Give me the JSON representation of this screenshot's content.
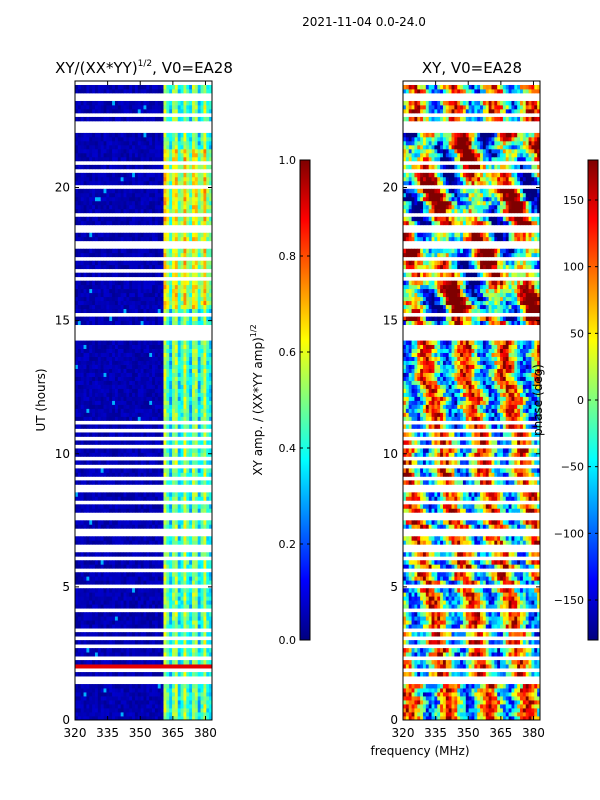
{
  "figure": {
    "suptitle": "2021-11-04 0.0-24.0",
    "shared_xlabel": "frequency (MHz)"
  },
  "colors": {
    "jet_stops": [
      "#00007f",
      "#0000ff",
      "#007fff",
      "#00ffff",
      "#7fff7f",
      "#ffff00",
      "#ff7f00",
      "#ff0000",
      "#7f0000"
    ],
    "background": "#ffffff"
  },
  "chart_data": [
    {
      "type": "heatmap",
      "id": "ratio",
      "title_main": "XY/(XX*YY)",
      "title_sup": "1/2",
      "title_tail": ", V0=EA28",
      "xlabel": "",
      "ylabel": "UT (hours)",
      "xlim": [
        320,
        383
      ],
      "ylim": [
        0,
        24
      ],
      "xticks": [
        320,
        335,
        350,
        365,
        380
      ],
      "xtick_labels": [
        "320",
        "335",
        "350",
        "365",
        "380"
      ],
      "yticks": [
        0,
        5,
        10,
        15,
        20
      ],
      "ytick_labels": [
        "0",
        "5",
        "10",
        "15",
        "20"
      ],
      "bright_band_mhz": [
        360.5,
        383
      ],
      "rfi_row_hours": [
        2.05
      ],
      "colorbar": {
        "label_main": "XY amp. / (XX*YY amp)",
        "label_sup": "1/2",
        "vmin": 0.0,
        "vmax": 1.0,
        "ticks": [
          0.0,
          0.2,
          0.4,
          0.6,
          0.8,
          1.0
        ],
        "tick_labels": [
          "0.0",
          "0.2",
          "0.4",
          "0.6",
          "0.8",
          "1.0"
        ]
      }
    },
    {
      "type": "heatmap",
      "id": "phase",
      "title": "XY, V0=EA28",
      "xlabel": "frequency (MHz)",
      "ylabel": "",
      "xlim": [
        320,
        383
      ],
      "ylim": [
        0,
        24
      ],
      "xticks": [
        320,
        335,
        350,
        365,
        380
      ],
      "xtick_labels": [
        "320",
        "335",
        "350",
        "365",
        "380"
      ],
      "yticks": [
        0,
        5,
        10,
        15,
        20
      ],
      "ytick_labels": [
        "0",
        "5",
        "10",
        "15",
        "20"
      ],
      "colorbar": {
        "label": "phase (deg)",
        "vmin": -180,
        "vmax": 180,
        "ticks": [
          -150,
          -100,
          -50,
          0,
          50,
          100,
          150
        ],
        "tick_labels": [
          "−150",
          "−100",
          "−50",
          "0",
          "50",
          "100",
          "150"
        ]
      }
    }
  ],
  "flagged_gaps_hours": [
    [
      1.35,
      1.6
    ],
    [
      5.55,
      5.75
    ],
    [
      14.3,
      14.8
    ],
    [
      22.0,
      22.55
    ],
    [
      22.7,
      22.85
    ],
    [
      23.2,
      23.35
    ]
  ],
  "thin_gaps_hours": [
    1.85,
    2.35,
    2.75,
    3.05,
    3.35,
    3.75,
    4.1,
    4.5,
    5.05,
    6.1,
    6.35,
    6.55,
    6.75,
    6.95,
    7.15,
    7.35,
    7.55,
    7.75,
    7.95,
    8.2,
    8.4,
    8.6,
    8.8,
    9.05,
    9.3,
    9.55,
    9.8,
    10.05,
    10.3,
    10.6,
    10.85,
    11.15,
    11.4,
    11.7,
    12.0,
    12.3,
    12.6,
    12.9,
    13.2,
    13.5,
    13.8,
    14.1,
    15.2,
    15.45,
    15.75,
    16.05,
    16.35,
    16.6,
    16.9,
    17.1,
    17.3,
    17.55,
    17.75,
    17.95,
    18.15,
    18.35,
    18.55,
    19.0,
    19.5,
    20.05,
    20.6,
    20.9,
    21.15,
    21.45,
    21.75,
    23.5,
    23.7,
    23.9
  ]
}
